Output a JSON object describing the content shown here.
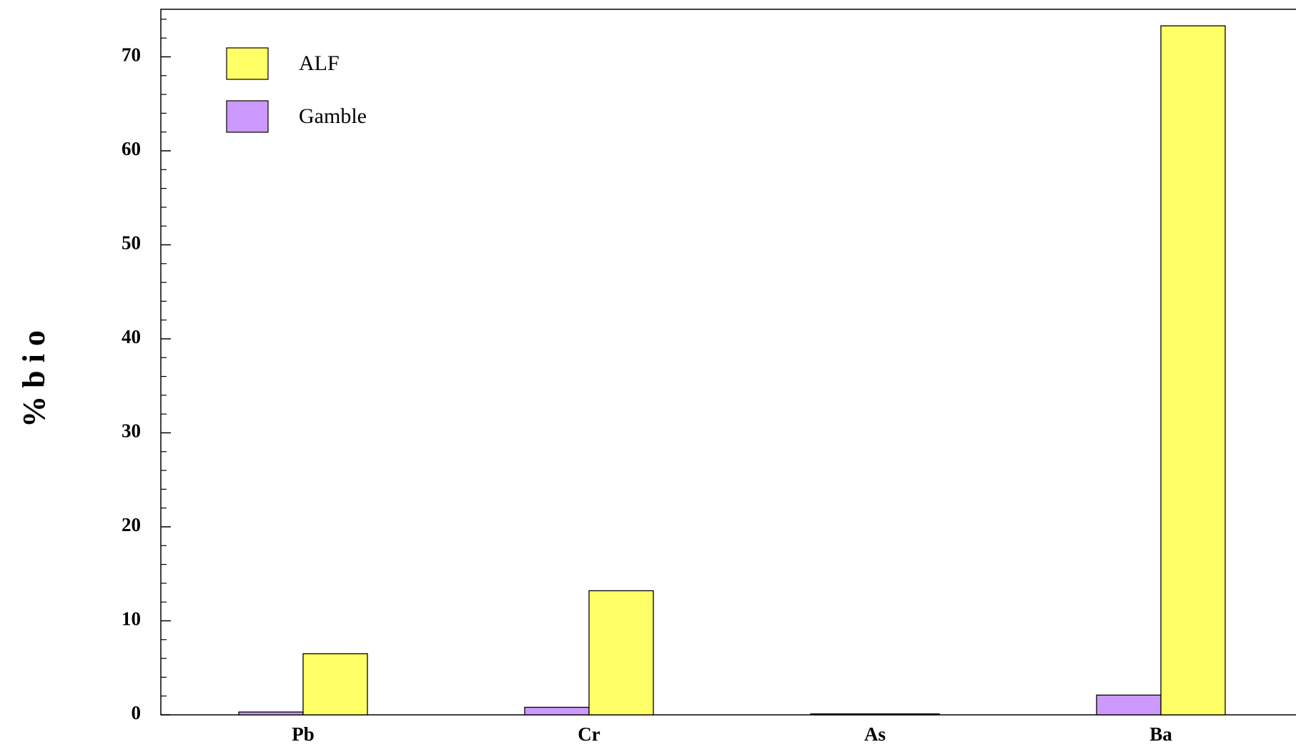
{
  "chart_data": {
    "type": "bar",
    "title": "",
    "xlabel": "",
    "ylabel": "% b i o",
    "categories": [
      "Pb",
      "Cr",
      "As",
      "Ba"
    ],
    "series": [
      {
        "name": "Gamble",
        "values": [
          0.3,
          0.8,
          0.1,
          2.1
        ],
        "color": "#cc99ff"
      },
      {
        "name": "ALF",
        "values": [
          6.5,
          13.2,
          0.1,
          73.3
        ],
        "color": "#ffff66"
      }
    ],
    "ylim": [
      0,
      75
    ],
    "yticks": [
      "0",
      "10",
      "20",
      "30",
      "40",
      "50",
      "60",
      "70"
    ],
    "minor_tick_step": 2,
    "grid": false,
    "legend": {
      "placement": "top-left",
      "entries": [
        {
          "label": "ALF",
          "color": "#ffff66"
        },
        {
          "label": "Gamble",
          "color": "#cc99ff"
        }
      ]
    }
  }
}
